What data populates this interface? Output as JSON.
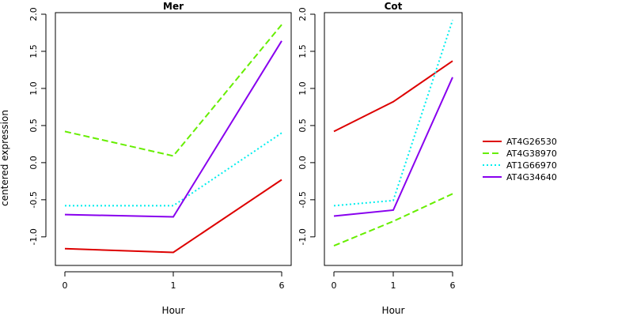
{
  "chart_data": {
    "type": "line",
    "ylabel": "centered expression",
    "legend_position": "right",
    "series_styles": [
      {
        "name": "AT4G26530",
        "color": "#dd0000",
        "dash": "solid"
      },
      {
        "name": "AT4G38970",
        "color": "#66ee00",
        "dash": "dashed"
      },
      {
        "name": "AT1G66970",
        "color": "#00eeee",
        "dash": "dotted"
      },
      {
        "name": "AT4G34640",
        "color": "#8800ee",
        "dash": "solid"
      }
    ],
    "panels": [
      {
        "title": "Mer",
        "xlabel": "Hour",
        "x": [
          0,
          1,
          6
        ],
        "x_tick_labels": [
          "0",
          "1",
          "6"
        ],
        "ylim": [
          -1.3,
          2.0
        ],
        "y_ticks": [
          -1.0,
          -0.5,
          0.0,
          0.5,
          1.0,
          1.5,
          2.0
        ],
        "y_tick_labels": [
          "-1.0",
          "-0.5",
          "0.0",
          "0.5",
          "1.0",
          "1.5",
          "2.0"
        ],
        "series": [
          {
            "name": "AT4G26530",
            "values": [
              -1.16,
              -1.21,
              -0.23
            ]
          },
          {
            "name": "AT4G38970",
            "values": [
              0.42,
              0.09,
              1.86
            ]
          },
          {
            "name": "AT1G66970",
            "values": [
              -0.58,
              -0.58,
              0.4
            ]
          },
          {
            "name": "AT4G34640",
            "values": [
              -0.7,
              -0.73,
              1.64
            ]
          }
        ]
      },
      {
        "title": "Cot",
        "xlabel": "Hour",
        "x": [
          0,
          1,
          6
        ],
        "x_tick_labels": [
          "0",
          "1",
          "6"
        ],
        "ylim": [
          -1.3,
          2.0
        ],
        "y_ticks": [
          -1.0,
          -0.5,
          0.0,
          0.5,
          1.0,
          1.5,
          2.0
        ],
        "y_tick_labels": [
          "-1.0",
          "-0.5",
          "0.0",
          "0.5",
          "1.0",
          "1.5",
          "2.0"
        ],
        "series": [
          {
            "name": "AT4G26530",
            "values": [
              0.42,
              0.82,
              1.37
            ]
          },
          {
            "name": "AT4G38970",
            "values": [
              -1.12,
              -0.79,
              -0.42
            ]
          },
          {
            "name": "AT1G66970",
            "values": [
              -0.58,
              -0.51,
              1.92
            ]
          },
          {
            "name": "AT4G34640",
            "values": [
              -0.72,
              -0.64,
              1.15
            ]
          }
        ]
      }
    ]
  }
}
